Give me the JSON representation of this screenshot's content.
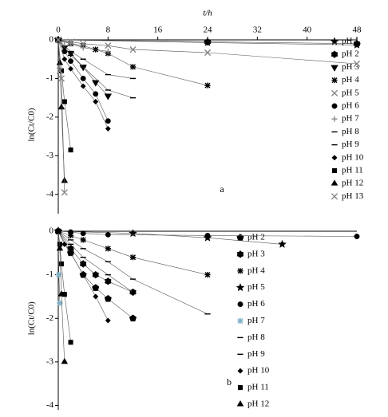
{
  "chart_data": [
    {
      "type": "scatter",
      "caption": "a",
      "x_label": "t/h",
      "y_label": "ln(Ct/C0)",
      "xlim": [
        0,
        48
      ],
      "xticks": [
        0,
        8,
        16,
        24,
        32,
        40,
        48
      ],
      "ylim": [
        -4.5,
        0.1
      ],
      "yticks": [
        0,
        -1,
        -2,
        -3,
        -4
      ],
      "series": [
        {
          "name": "pH 1",
          "color": "#000000",
          "marker": "star",
          "x": [
            0,
            24,
            48
          ],
          "values": [
            0,
            -0.07,
            -0.13
          ]
        },
        {
          "name": "pH 2",
          "color": "#000000",
          "marker": "hexagon",
          "x": [
            0,
            24,
            48
          ],
          "values": [
            0,
            -0.05,
            -0.1
          ]
        },
        {
          "name": "pH 3",
          "color": "#000000",
          "marker": "tri-down",
          "x": [
            0,
            1,
            2,
            4,
            6,
            8
          ],
          "values": [
            0,
            -0.2,
            -0.35,
            -0.7,
            -1.1,
            -1.45
          ]
        },
        {
          "name": "pH 4",
          "color": "#000000",
          "marker": "asterisk",
          "x": [
            0,
            2,
            4,
            6,
            8,
            12,
            24
          ],
          "values": [
            0,
            -0.1,
            -0.15,
            -0.25,
            -0.35,
            -0.7,
            -1.18
          ]
        },
        {
          "name": "pH 5",
          "color": "#888888",
          "marker": "x",
          "x": [
            0,
            2,
            4,
            8,
            12,
            24,
            48
          ],
          "values": [
            0,
            -0.05,
            -0.1,
            -0.15,
            -0.25,
            -0.33,
            -0.62
          ]
        },
        {
          "name": "pH 6",
          "color": "#000000",
          "marker": "circle",
          "x": [
            0,
            1,
            2,
            4,
            6,
            8
          ],
          "values": [
            0,
            -0.3,
            -0.55,
            -1.0,
            -1.4,
            -2.1
          ]
        },
        {
          "name": "pH 7",
          "color": "#888888",
          "marker": "plus",
          "x": [
            0,
            1,
            2,
            4,
            8
          ],
          "values": [
            0,
            -0.05,
            -0.1,
            -0.2,
            -0.3
          ]
        },
        {
          "name": "pH 8",
          "color": "#000000",
          "marker": "dash",
          "x": [
            0,
            2,
            4,
            8,
            12
          ],
          "values": [
            0,
            -0.3,
            -0.5,
            -0.9,
            -1.0
          ]
        },
        {
          "name": "pH 9",
          "color": "#000000",
          "marker": "dash",
          "x": [
            0,
            2,
            4,
            8,
            12
          ],
          "values": [
            0,
            -0.4,
            -0.7,
            -1.3,
            -1.5
          ]
        },
        {
          "name": "pH 10",
          "color": "#000000",
          "marker": "diamond",
          "x": [
            0,
            1,
            2,
            4,
            6,
            8
          ],
          "values": [
            0,
            -0.5,
            -0.75,
            -1.2,
            -1.6,
            -2.3
          ]
        },
        {
          "name": "pH 11",
          "color": "#000000",
          "marker": "square",
          "x": [
            0,
            0.5,
            1,
            2
          ],
          "values": [
            0,
            -0.8,
            -1.6,
            -2.85
          ]
        },
        {
          "name": "pH 12",
          "color": "#000000",
          "marker": "tri-up",
          "x": [
            0,
            0.25,
            0.5,
            1
          ],
          "values": [
            0,
            -0.6,
            -1.75,
            -3.65
          ]
        },
        {
          "name": "pH 13",
          "color": "#888888",
          "marker": "x",
          "x": [
            0,
            0.25,
            0.5,
            1
          ],
          "values": [
            0,
            -0.8,
            -1.0,
            -3.95
          ]
        }
      ]
    },
    {
      "type": "scatter",
      "caption": "b",
      "y_label": "ln(Ct/C0)",
      "xlim": [
        0,
        48
      ],
      "ylim": [
        -4.1,
        0.1
      ],
      "yticks": [
        0,
        -1,
        -2,
        -3,
        -4
      ],
      "series": [
        {
          "name": "pH 2",
          "color": "#000000",
          "marker": "pentagon",
          "x": [
            0,
            2,
            4,
            6,
            8,
            12
          ],
          "values": [
            0,
            -0.5,
            -1.0,
            -1.3,
            -1.55,
            -2.0
          ]
        },
        {
          "name": "pH 3",
          "color": "#000000",
          "marker": "hexagon",
          "x": [
            0,
            2,
            4,
            6,
            8,
            12
          ],
          "values": [
            0,
            -0.4,
            -0.75,
            -1.0,
            -1.15,
            -1.4
          ]
        },
        {
          "name": "pH 4",
          "color": "#000000",
          "marker": "asterisk",
          "x": [
            0,
            2,
            4,
            8,
            12,
            24
          ],
          "values": [
            0,
            -0.1,
            -0.2,
            -0.4,
            -0.6,
            -1.0
          ]
        },
        {
          "name": "pH 5",
          "color": "#000000",
          "marker": "star",
          "x": [
            0,
            12,
            24,
            36
          ],
          "values": [
            0,
            -0.05,
            -0.15,
            -0.3
          ]
        },
        {
          "name": "pH 6",
          "color": "#000000",
          "marker": "circle",
          "x": [
            0,
            2,
            4,
            8,
            24,
            48
          ],
          "values": [
            0,
            -0.02,
            -0.05,
            -0.08,
            -0.1,
            -0.12
          ]
        },
        {
          "name": "pH 7",
          "color": "#7fb3c8",
          "marker": "asterisk",
          "x": [
            0,
            0.1,
            0.25
          ],
          "values": [
            0,
            -1.0,
            -1.65
          ]
        },
        {
          "name": "pH 8",
          "color": "#000000",
          "marker": "dash",
          "x": [
            0,
            2,
            4,
            8,
            12,
            24
          ],
          "values": [
            0,
            -0.2,
            -0.4,
            -0.7,
            -1.1,
            -1.9
          ]
        },
        {
          "name": "pH 9",
          "color": "#000000",
          "marker": "dash",
          "x": [
            0,
            2,
            4,
            8,
            12
          ],
          "values": [
            0,
            -0.3,
            -0.6,
            -1.0,
            -1.4
          ]
        },
        {
          "name": "pH 10",
          "color": "#000000",
          "marker": "diamond",
          "x": [
            0,
            1,
            2,
            4,
            6,
            8
          ],
          "values": [
            0,
            -0.3,
            -0.5,
            -1.0,
            -1.5,
            -2.05
          ]
        },
        {
          "name": "pH 11",
          "color": "#000000",
          "marker": "square",
          "x": [
            0,
            0.25,
            0.5,
            1,
            2
          ],
          "values": [
            0,
            -0.3,
            -0.75,
            -1.45,
            -2.55
          ]
        },
        {
          "name": "pH 12",
          "color": "#000000",
          "marker": "tri-up",
          "x": [
            0,
            0.25,
            0.5,
            1
          ],
          "values": [
            0,
            -0.4,
            -1.45,
            -3.0
          ]
        }
      ]
    }
  ]
}
